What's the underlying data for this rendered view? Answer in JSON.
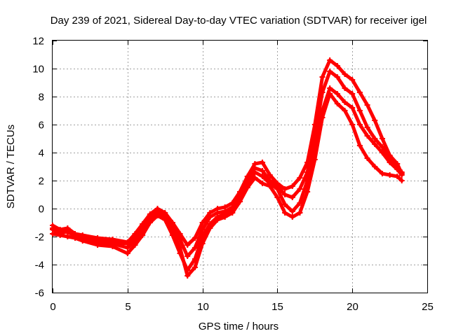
{
  "chart_data": {
    "type": "line",
    "title": "Day 239 of 2021, Sidereal Day-to-day VTEC variation (SDTVAR) for receiver igel",
    "xlabel": "GPS time / hours",
    "ylabel": "SDTVAR / TECUs",
    "xlim": [
      0,
      25
    ],
    "ylim": [
      -6,
      12
    ],
    "xticks": [
      0,
      5,
      10,
      15,
      20,
      25
    ],
    "yticks": [
      -6,
      -4,
      -2,
      0,
      2,
      4,
      6,
      8,
      10,
      12
    ],
    "grid": true,
    "marker": "+",
    "color": "#ff0000",
    "series": [
      {
        "name": "track-1",
        "x": [
          0,
          0.5,
          1,
          1.5,
          2,
          3,
          4,
          5,
          5.5,
          6,
          6.5,
          7,
          7.5,
          8,
          8.5,
          9,
          9.5,
          10,
          10.5,
          11,
          11.5,
          12,
          12.5,
          13,
          13.5,
          14,
          14.5,
          15,
          15.5,
          16,
          16.5,
          17,
          17.5,
          18,
          18.5,
          19,
          19.5,
          20,
          20.5,
          21,
          21.5,
          22,
          22.5,
          23,
          23.3
        ],
        "y": [
          -1.5,
          -1.8,
          -1.6,
          -2.0,
          -2.2,
          -2.4,
          -2.5,
          -2.8,
          -2.3,
          -1.5,
          -0.8,
          -0.3,
          -0.6,
          -1.6,
          -2.8,
          -4.8,
          -4.2,
          -2.5,
          -1.4,
          -0.8,
          -0.6,
          -0.3,
          0.5,
          1.5,
          2.2,
          1.8,
          1.6,
          0.8,
          -0.3,
          -0.6,
          -0.3,
          1.2,
          3.5,
          6.5,
          8.2,
          7.5,
          7.0,
          6.0,
          4.5,
          3.6,
          3.0,
          2.5,
          2.4,
          2.3,
          2.0
        ]
      },
      {
        "name": "track-2",
        "x": [
          0,
          0.5,
          1,
          1.5,
          2,
          3,
          4,
          5,
          5.5,
          6,
          6.5,
          7,
          7.5,
          8,
          8.5,
          9,
          9.5,
          10,
          10.5,
          11,
          11.5,
          12,
          12.5,
          13,
          13.5,
          14,
          14.5,
          15,
          15.5,
          16,
          16.5,
          17,
          17.5,
          18,
          18.5,
          19,
          19.5,
          20,
          20.5,
          21,
          21.5,
          22,
          22.5,
          23,
          23.3
        ],
        "y": [
          -1.8,
          -1.9,
          -2.0,
          -2.1,
          -2.3,
          -2.6,
          -2.7,
          -3.2,
          -2.6,
          -1.9,
          -1.0,
          -0.5,
          -0.8,
          -1.9,
          -3.2,
          -4.4,
          -3.6,
          -2.0,
          -1.1,
          -0.6,
          -0.4,
          -0.1,
          0.8,
          1.8,
          2.6,
          2.3,
          1.8,
          1.4,
          0.3,
          -0.2,
          0.4,
          2.0,
          4.5,
          7.0,
          8.6,
          8.2,
          7.6,
          7.2,
          6.0,
          5.2,
          4.6,
          4.0,
          3.3,
          2.8,
          2.4
        ]
      },
      {
        "name": "track-3",
        "x": [
          0,
          0.5,
          1,
          1.5,
          2,
          3,
          4,
          5,
          5.5,
          6,
          6.5,
          7,
          7.5,
          8,
          8.5,
          9,
          9.5,
          10,
          10.5,
          11,
          11.5,
          12,
          12.5,
          13,
          13.5,
          14,
          14.5,
          15,
          15.5,
          16,
          16.5,
          17,
          17.5,
          18,
          18.5,
          19,
          19.5,
          20,
          20.5,
          21,
          21.5,
          22,
          22.5,
          23,
          23.3
        ],
        "y": [
          -1.4,
          -1.6,
          -1.7,
          -1.9,
          -2.1,
          -2.2,
          -2.4,
          -2.5,
          -2.1,
          -1.3,
          -0.6,
          -0.1,
          -0.5,
          -1.3,
          -2.2,
          -3.4,
          -2.8,
          -1.5,
          -0.6,
          -0.3,
          -0.2,
          0.1,
          0.9,
          2.0,
          2.9,
          2.7,
          2.0,
          1.6,
          1.0,
          0.8,
          1.4,
          2.6,
          5.2,
          8.3,
          9.8,
          9.4,
          8.6,
          8.2,
          7.0,
          5.8,
          5.0,
          4.4,
          3.6,
          3.0,
          2.6
        ]
      },
      {
        "name": "track-4",
        "x": [
          0,
          0.5,
          1,
          1.5,
          2,
          3,
          4,
          5,
          5.5,
          6,
          6.5,
          7,
          7.5,
          8,
          8.5,
          9,
          9.5,
          10,
          10.5,
          11,
          11.5,
          12,
          12.5,
          13,
          13.5,
          14,
          14.5,
          15,
          15.5,
          16,
          16.5,
          17,
          17.5,
          18,
          18.5,
          19,
          19.5,
          20,
          20.5,
          21,
          21.5,
          22,
          22.5,
          23,
          23.3
        ],
        "y": [
          -1.2,
          -1.5,
          -1.4,
          -1.8,
          -1.9,
          -2.1,
          -2.2,
          -2.4,
          -1.8,
          -1.1,
          -0.4,
          0.0,
          -0.3,
          -1.0,
          -1.8,
          -2.6,
          -2.1,
          -1.0,
          -0.3,
          0.0,
          0.1,
          0.4,
          1.2,
          2.3,
          3.2,
          3.3,
          2.4,
          1.8,
          1.4,
          1.6,
          2.2,
          3.3,
          6.0,
          9.4,
          10.6,
          10.2,
          9.6,
          9.2,
          8.3,
          7.4,
          6.3,
          5.0,
          3.8,
          3.2,
          2.5
        ]
      }
    ]
  }
}
